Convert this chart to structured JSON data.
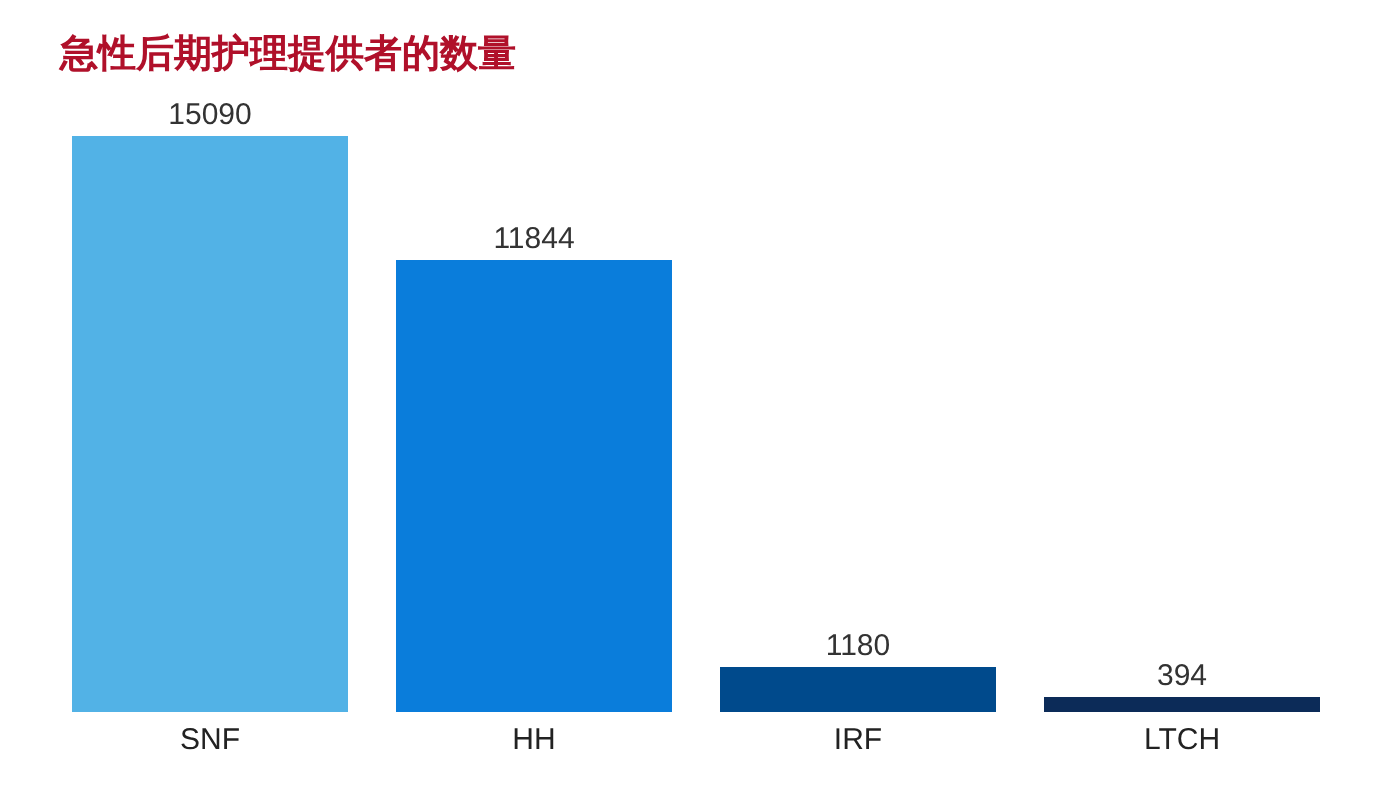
{
  "chart_data": {
    "type": "bar",
    "title": "急性后期护理提供者的数量",
    "categories": [
      "SNF",
      "HH",
      "IRF",
      "LTCH"
    ],
    "values": [
      15090,
      11844,
      1180,
      394
    ],
    "colors": [
      "#52b2e6",
      "#0a7ddb",
      "#004a8c",
      "#0c2b58"
    ],
    "data_labels": true,
    "grid": false,
    "legend": false
  }
}
